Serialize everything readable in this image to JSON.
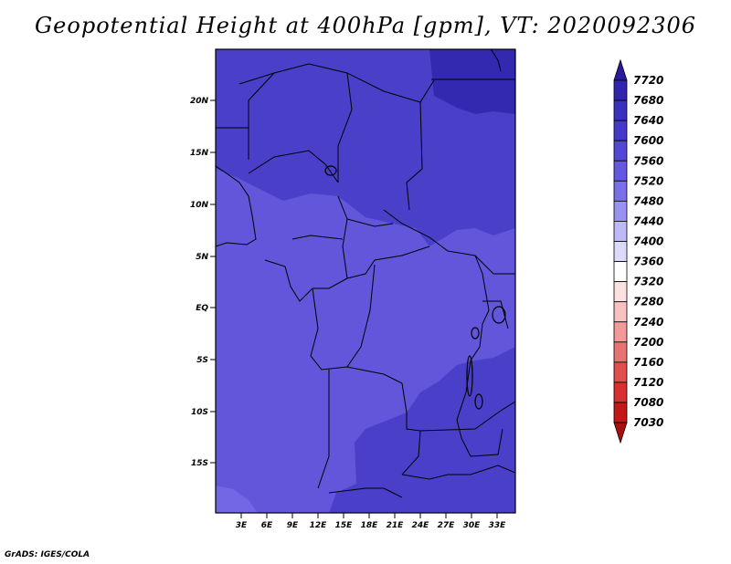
{
  "title": "Geopotential Height at 400hPa [gpm], VT: 2020092306",
  "credit": "GrADS: IGES/COLA",
  "map": {
    "lat_labels": [
      "20N",
      "15N",
      "10N",
      "5N",
      "EQ",
      "5S",
      "10S",
      "15S"
    ],
    "lon_labels": [
      "3E",
      "6E",
      "9E",
      "12E",
      "15E",
      "18E",
      "21E",
      "24E",
      "27E",
      "30E",
      "33E"
    ],
    "region": "West-Central Africa",
    "field": "400hPa geopotential height"
  },
  "legend": {
    "levels": [
      "7720",
      "7680",
      "7640",
      "7600",
      "7560",
      "7520",
      "7480",
      "7440",
      "7400",
      "7360",
      "7320",
      "7280",
      "7240",
      "7200",
      "7160",
      "7120",
      "7080",
      "7030"
    ],
    "colors": [
      "#2a1b9c",
      "#3324b0",
      "#3b2fc0",
      "#4439c8",
      "#5247d6",
      "#6459e0",
      "#7a6fe8",
      "#9a92f0",
      "#bdb8f6",
      "#dcdafc",
      "#ffffff",
      "#fde0e0",
      "#f8c0c0",
      "#f09a9a",
      "#e87272",
      "#e04e4e",
      "#d83030",
      "#c21818",
      "#a80f0f"
    ]
  },
  "map_fill_colors": {
    "north": "#4a3fc8",
    "north_east": "#3328b0",
    "middle": "#6256da",
    "south_east": "#4a3fc8",
    "south_west": "#7367e6"
  }
}
